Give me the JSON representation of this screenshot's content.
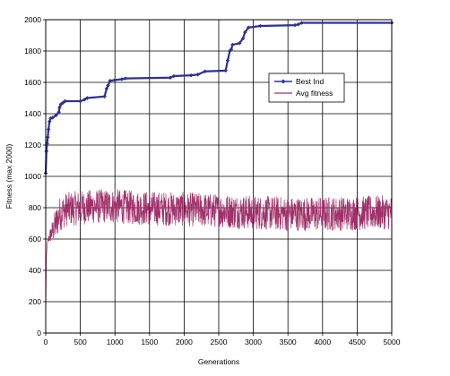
{
  "chart_data": {
    "type": "line",
    "title": "",
    "xlabel": "Generations",
    "ylabel": "Fitness (max 2000)",
    "xlim": [
      0,
      5000
    ],
    "ylim": [
      0,
      2000
    ],
    "xticks": [
      0,
      500,
      1000,
      1500,
      2000,
      2500,
      3000,
      3500,
      4000,
      4500,
      5000
    ],
    "yticks": [
      0,
      200,
      400,
      600,
      800,
      1000,
      1200,
      1400,
      1600,
      1800,
      2000
    ],
    "grid": true,
    "legend_position": "top-right",
    "series": [
      {
        "name": "Best Ind",
        "color": "#2e3192",
        "marker": "diamond",
        "points": [
          [
            0,
            1020
          ],
          [
            10,
            1160
          ],
          [
            20,
            1210
          ],
          [
            30,
            1250
          ],
          [
            40,
            1300
          ],
          [
            55,
            1350
          ],
          [
            70,
            1370
          ],
          [
            100,
            1375
          ],
          [
            150,
            1390
          ],
          [
            190,
            1410
          ],
          [
            200,
            1440
          ],
          [
            220,
            1460
          ],
          [
            250,
            1470
          ],
          [
            280,
            1480
          ],
          [
            500,
            1480
          ],
          [
            560,
            1490
          ],
          [
            600,
            1500
          ],
          [
            850,
            1510
          ],
          [
            880,
            1560
          ],
          [
            900,
            1580
          ],
          [
            930,
            1610
          ],
          [
            1000,
            1615
          ],
          [
            1100,
            1620
          ],
          [
            1150,
            1625
          ],
          [
            1800,
            1630
          ],
          [
            1850,
            1640
          ],
          [
            2100,
            1645
          ],
          [
            2200,
            1650
          ],
          [
            2300,
            1670
          ],
          [
            2600,
            1675
          ],
          [
            2630,
            1740
          ],
          [
            2660,
            1800
          ],
          [
            2680,
            1810
          ],
          [
            2700,
            1840
          ],
          [
            2800,
            1850
          ],
          [
            2850,
            1880
          ],
          [
            2880,
            1920
          ],
          [
            2930,
            1950
          ],
          [
            3100,
            1960
          ],
          [
            3600,
            1965
          ],
          [
            3650,
            1970
          ],
          [
            3700,
            1980
          ],
          [
            5000,
            1980
          ]
        ]
      },
      {
        "name": "Avg fitness",
        "color": "#a0306a",
        "marker": "none",
        "noisy_band": true,
        "points": [
          [
            0,
            80
          ],
          [
            5,
            300
          ],
          [
            10,
            480
          ],
          [
            20,
            560
          ],
          [
            40,
            600
          ],
          [
            60,
            620
          ],
          [
            100,
            650
          ],
          [
            150,
            700
          ],
          [
            200,
            760
          ],
          [
            300,
            790
          ],
          [
            500,
            800
          ],
          [
            800,
            810
          ],
          [
            1000,
            810
          ],
          [
            1300,
            800
          ],
          [
            1600,
            795
          ],
          [
            2000,
            790
          ],
          [
            2500,
            780
          ],
          [
            2800,
            775
          ],
          [
            3000,
            770
          ],
          [
            3500,
            760
          ],
          [
            4000,
            760
          ],
          [
            4500,
            765
          ],
          [
            5000,
            770
          ]
        ],
        "amplitude": 110
      }
    ]
  }
}
